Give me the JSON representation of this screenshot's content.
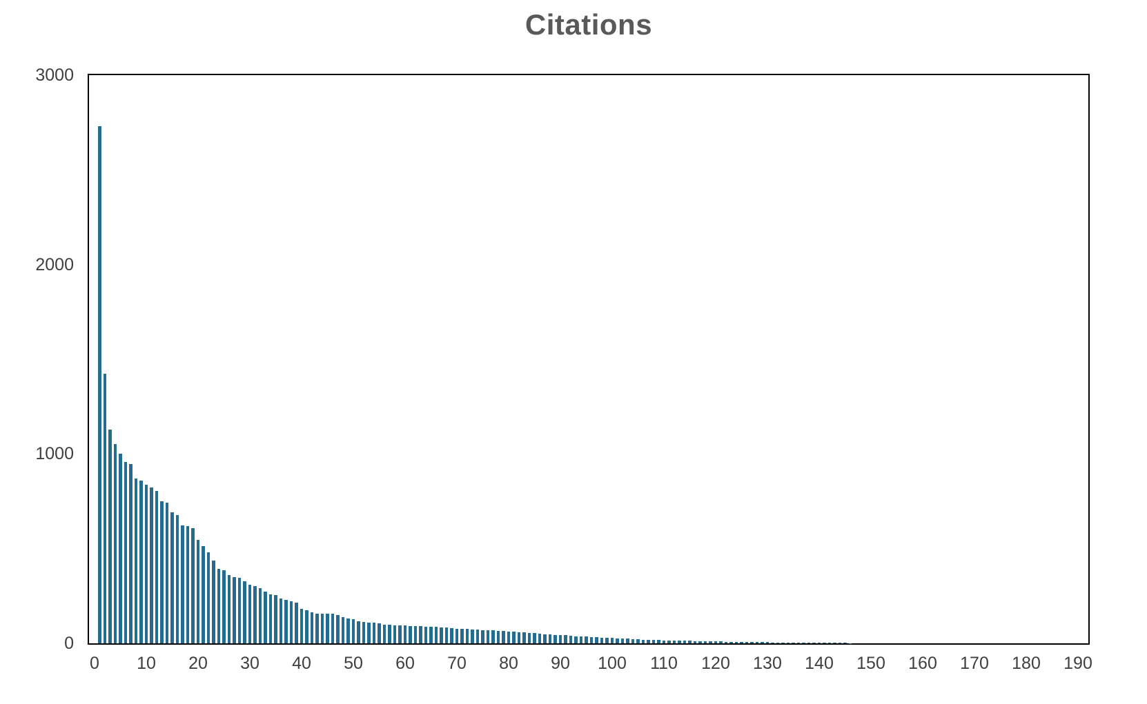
{
  "chart_data": {
    "type": "bar",
    "title": "Citations",
    "xlabel": "",
    "ylabel": "",
    "x_description": "paper rank, bars plotted at x = 1..192",
    "x_first_bar": 1,
    "x_step": 1,
    "xlim": [
      -1,
      192
    ],
    "ylim": [
      0,
      3000
    ],
    "x_ticks": [
      0,
      10,
      20,
      30,
      40,
      50,
      60,
      70,
      80,
      90,
      100,
      110,
      120,
      130,
      140,
      150,
      160,
      170,
      180,
      190
    ],
    "y_ticks": [
      0,
      1000,
      2000,
      3000
    ],
    "grid": false,
    "legend": "none",
    "values": [
      2731,
      1424,
      1128,
      1052,
      1000,
      957,
      947,
      870,
      858,
      836,
      823,
      806,
      750,
      744,
      690,
      678,
      624,
      618,
      608,
      545,
      514,
      480,
      436,
      393,
      387,
      359,
      351,
      347,
      326,
      308,
      302,
      290,
      272,
      260,
      254,
      235,
      229,
      223,
      216,
      182,
      176,
      165,
      158,
      157,
      156,
      155,
      150,
      138,
      130,
      126,
      116,
      112,
      110,
      108,
      104,
      100,
      98,
      96,
      94,
      93,
      92,
      91,
      90,
      89,
      88,
      86,
      84,
      82,
      81,
      78,
      77,
      75,
      74,
      72,
      71,
      70,
      68,
      67,
      65,
      63,
      61,
      59,
      57,
      55,
      53,
      51,
      49,
      47,
      45,
      44,
      42,
      40,
      38,
      37,
      35,
      34,
      32,
      31,
      29,
      28,
      26,
      25,
      24,
      22,
      21,
      20,
      19,
      18,
      17,
      16,
      15,
      15,
      14,
      13,
      13,
      12,
      12,
      11,
      11,
      10,
      10,
      9,
      9,
      8,
      8,
      7,
      7,
      6,
      6,
      6,
      5,
      5,
      5,
      4,
      4,
      4,
      3,
      3,
      3,
      3,
      2,
      2,
      2,
      2,
      2,
      1,
      0,
      0,
      0,
      0,
      0,
      0,
      0,
      0,
      0,
      0,
      0,
      0,
      0,
      0,
      0,
      0,
      0,
      0,
      0,
      0,
      0,
      0,
      0,
      0,
      0,
      0,
      0,
      0,
      0,
      0,
      0,
      0,
      0,
      0,
      0,
      0,
      0,
      0,
      0,
      0,
      0,
      0,
      0,
      0,
      0,
      0
    ]
  },
  "colors": {
    "bar": "#266b90",
    "title": "#595959",
    "axis_border": "#000000",
    "tick_label": "#3f3f3f",
    "background": "#ffffff"
  }
}
